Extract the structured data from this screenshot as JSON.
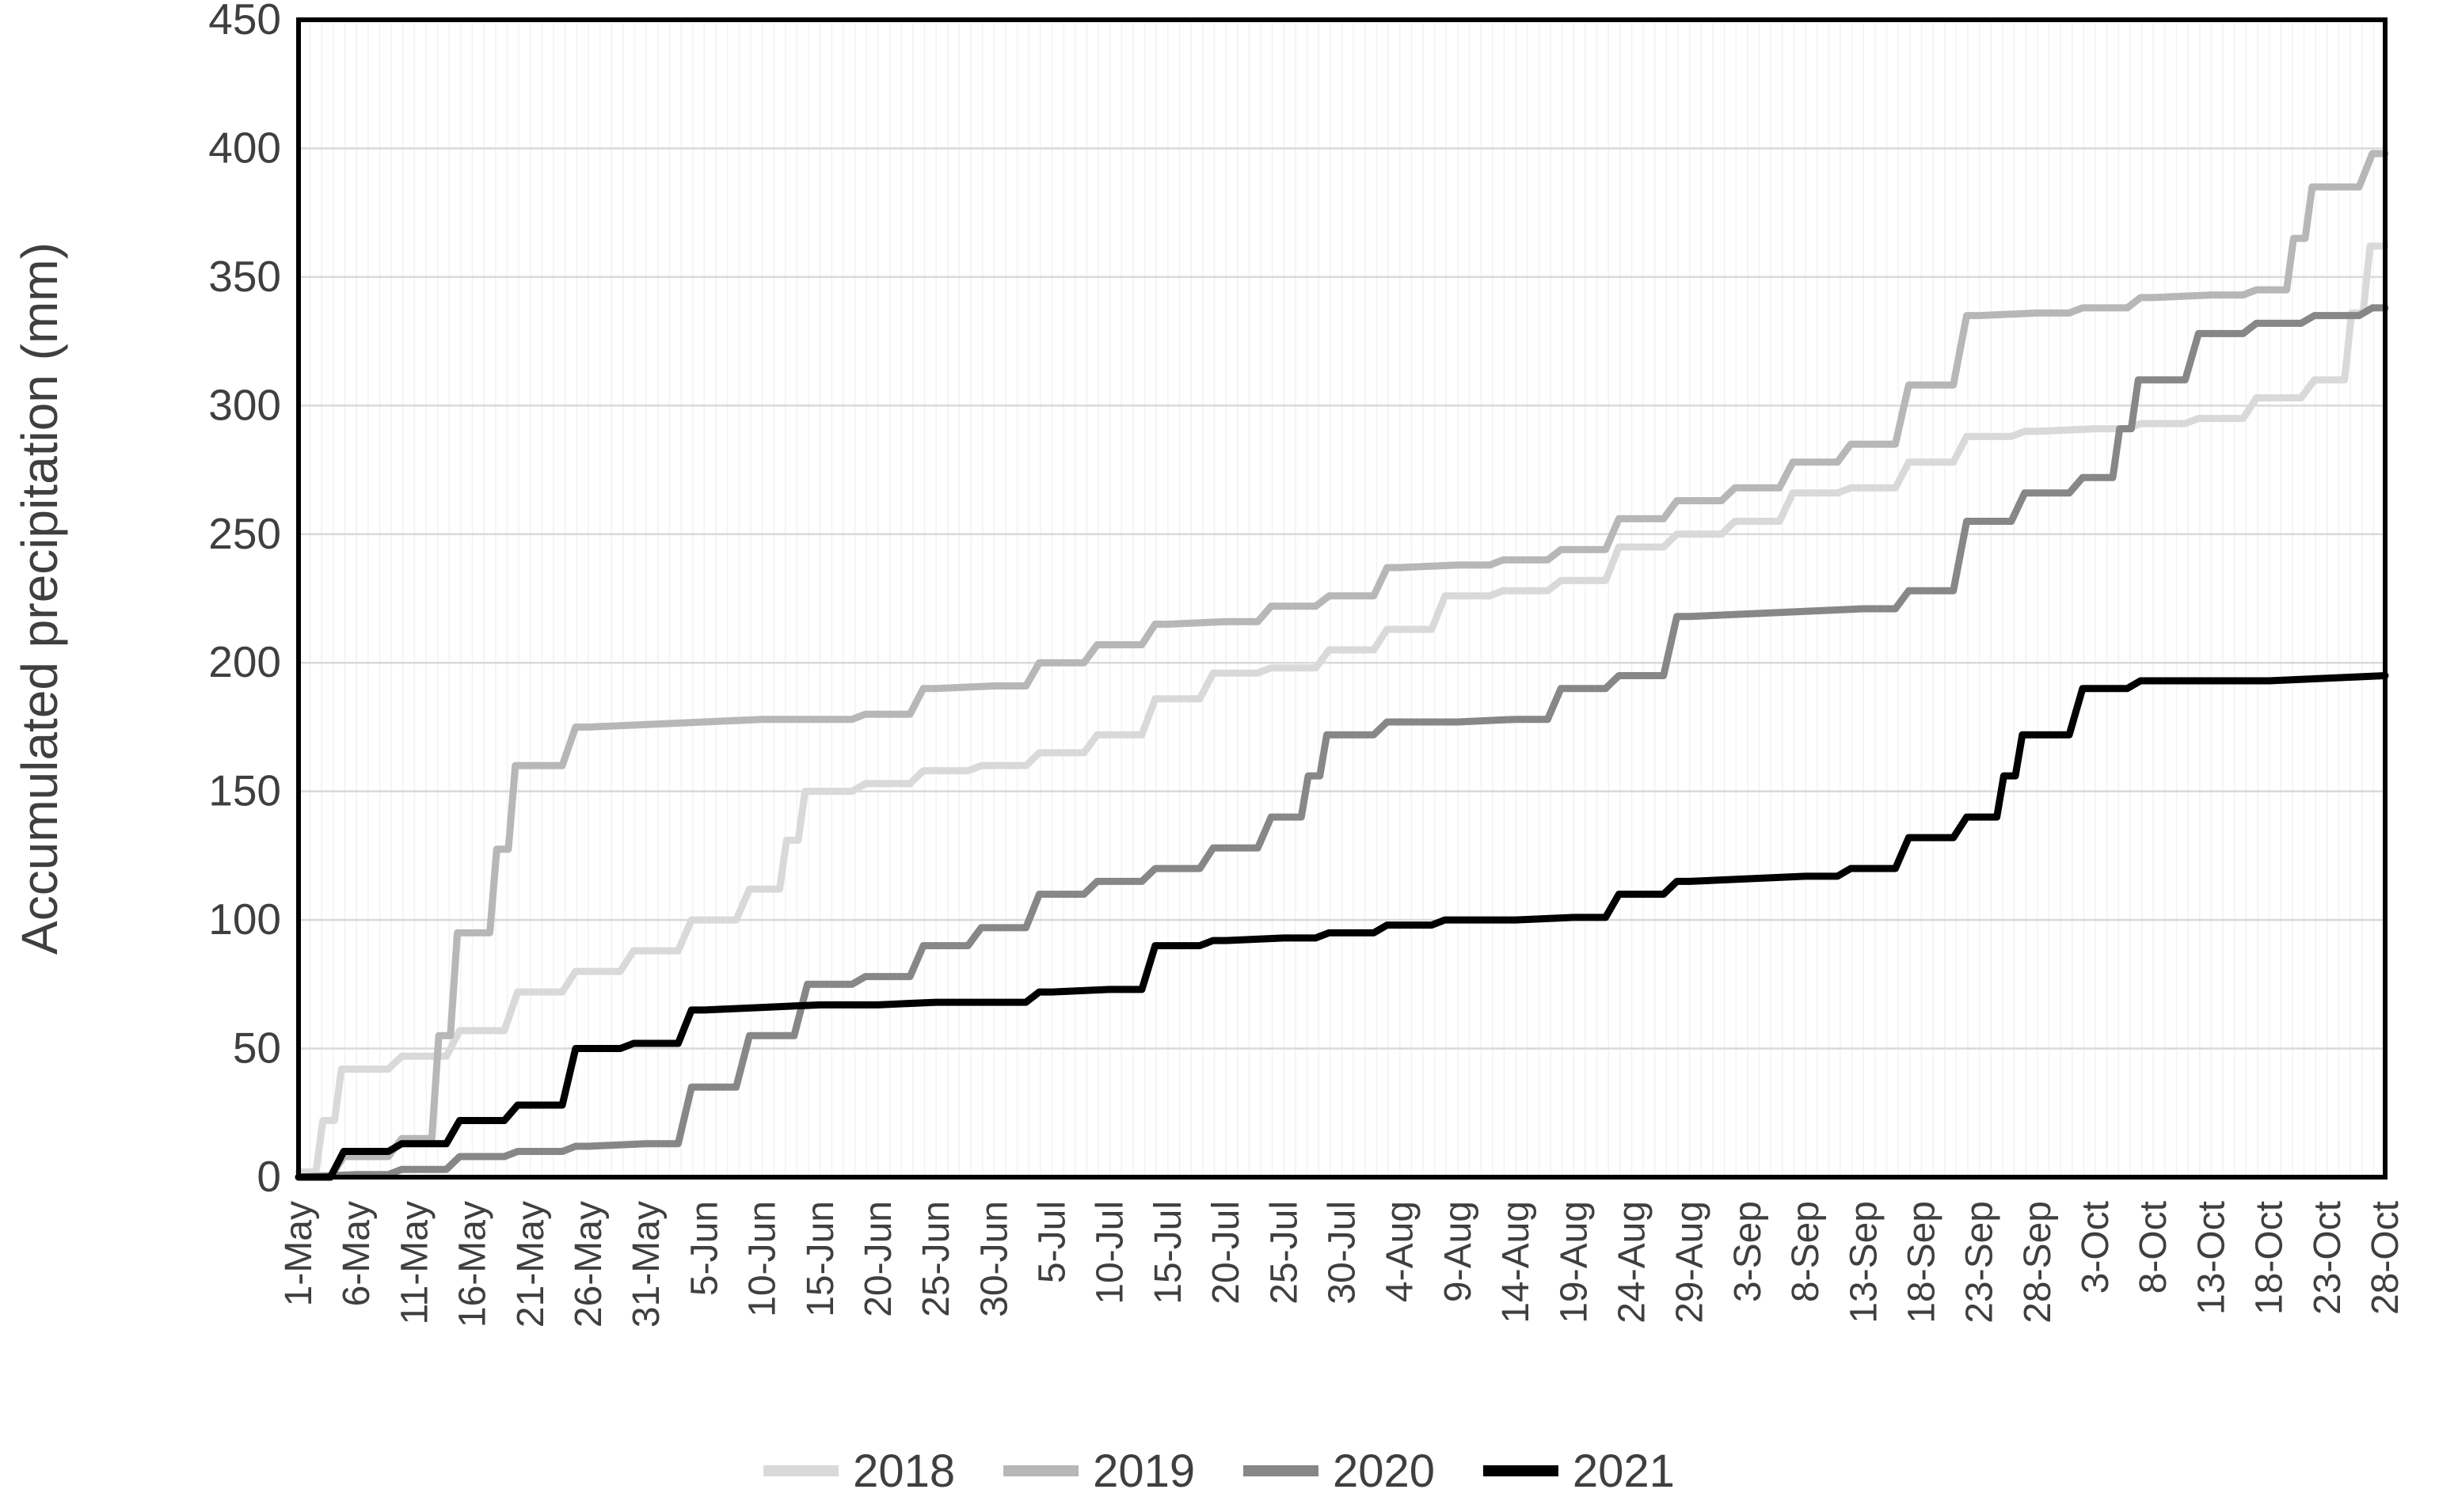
{
  "chart_data": {
    "type": "line",
    "title": "",
    "xlabel": "",
    "ylabel": "Accumulated precipitation (mm)",
    "ylim": [
      0,
      450
    ],
    "ytick_step": 50,
    "grid": "horizontal-major, faint vertical minor",
    "legend_position": "bottom-center",
    "categories": [
      "1-May",
      "6-May",
      "11-May",
      "16-May",
      "21-May",
      "26-May",
      "31-May",
      "5-Jun",
      "10-Jun",
      "15-Jun",
      "20-Jun",
      "25-Jun",
      "30-Jun",
      "5-Jul",
      "10-Jul",
      "15-Jul",
      "20-Jul",
      "25-Jul",
      "30-Jul",
      "4-Aug",
      "9-Aug",
      "14-Aug",
      "19-Aug",
      "24-Aug",
      "29-Aug",
      "3-Sep",
      "8-Sep",
      "13-Sep",
      "18-Sep",
      "23-Sep",
      "28-Sep",
      "3-Oct",
      "8-Oct",
      "13-Oct",
      "18-Oct",
      "23-Oct",
      "28-Oct"
    ],
    "yticks": [
      0,
      50,
      100,
      150,
      200,
      250,
      300,
      350,
      400,
      450
    ],
    "series": [
      {
        "name": "2018",
        "color": "#d9d9d9",
        "values": [
          2,
          42,
          47,
          57,
          72,
          80,
          88,
          100,
          112,
          150,
          153,
          158,
          160,
          165,
          172,
          186,
          196,
          198,
          205,
          213,
          226,
          228,
          232,
          245,
          250,
          255,
          266,
          268,
          278,
          288,
          290,
          291,
          293,
          295,
          303,
          310,
          362
        ]
      },
      {
        "name": "2019",
        "color": "#b7b7b7",
        "values": [
          0,
          8,
          15,
          95,
          160,
          175,
          176,
          177,
          178,
          178,
          180,
          190,
          191,
          200,
          207,
          215,
          216,
          222,
          226,
          237,
          238,
          240,
          244,
          256,
          263,
          268,
          278,
          285,
          308,
          335,
          336,
          338,
          342,
          343,
          345,
          385,
          398
        ]
      },
      {
        "name": "2020",
        "color": "#878787",
        "values": [
          0,
          1,
          3,
          8,
          10,
          12,
          13,
          35,
          55,
          75,
          78,
          90,
          97,
          110,
          115,
          120,
          128,
          140,
          172,
          177,
          177,
          178,
          190,
          195,
          218,
          219,
          220,
          221,
          228,
          255,
          266,
          272,
          310,
          328,
          332,
          335,
          338
        ]
      },
      {
        "name": "2021",
        "color": "#000000",
        "values": [
          0,
          10,
          13,
          22,
          28,
          50,
          52,
          65,
          66,
          67,
          67,
          68,
          68,
          72,
          73,
          90,
          92,
          93,
          95,
          98,
          100,
          100,
          101,
          110,
          115,
          116,
          117,
          120,
          132,
          140,
          172,
          190,
          193,
          193,
          193,
          194,
          195
        ]
      }
    ],
    "styles": {
      "plot_border_color": "#000000",
      "gridline_color": "#d9d9d9",
      "minor_vgrid_color": "#f2f2f2",
      "label_color": "#3f3f3f",
      "axis_title_color": "#3f3f3f"
    }
  }
}
